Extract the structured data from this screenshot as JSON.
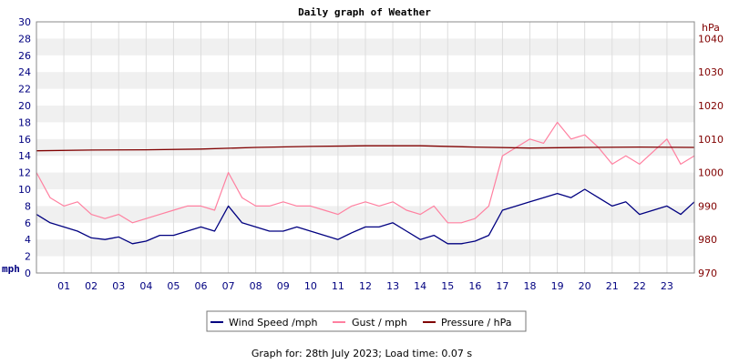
{
  "chart_data": {
    "type": "line",
    "title": "Daily graph of Weather",
    "left_axis": {
      "unit": "mph",
      "range": [
        0,
        30
      ],
      "ticks": [
        0,
        2,
        4,
        6,
        8,
        10,
        12,
        14,
        16,
        18,
        20,
        22,
        24,
        26,
        28,
        30
      ],
      "tick_labels": [
        "0",
        "2",
        "4",
        "6",
        "8",
        "10",
        "12",
        "14",
        "16",
        "18",
        "20",
        "22",
        "24",
        "26",
        "28",
        "30"
      ]
    },
    "right_axis": {
      "unit": "hPa",
      "range": [
        970,
        1045
      ],
      "ticks": [
        970,
        980,
        990,
        1000,
        1010,
        1020,
        1030,
        1040
      ],
      "tick_labels": [
        "970",
        "980",
        "990",
        "1000",
        "1010",
        "1020",
        "1030",
        "1040"
      ]
    },
    "x_axis": {
      "range": [
        0,
        24
      ],
      "ticks": [
        1,
        2,
        3,
        4,
        5,
        6,
        7,
        8,
        9,
        10,
        11,
        12,
        13,
        14,
        15,
        16,
        17,
        18,
        19,
        20,
        21,
        22,
        23
      ],
      "tick_labels": [
        "01",
        "02",
        "03",
        "04",
        "05",
        "06",
        "07",
        "08",
        "09",
        "10",
        "11",
        "12",
        "13",
        "14",
        "15",
        "16",
        "17",
        "18",
        "19",
        "20",
        "21",
        "22",
        "23"
      ]
    },
    "grid": true,
    "legend_position": "bottom",
    "series": [
      {
        "name": "Wind Speed /mph",
        "axis": "left",
        "color": "#000080",
        "x": [
          0,
          0.5,
          1,
          1.5,
          2,
          2.5,
          3,
          3.5,
          4,
          4.5,
          5,
          5.5,
          6,
          6.5,
          7,
          7.5,
          8,
          8.5,
          9,
          9.5,
          10,
          10.5,
          11,
          11.5,
          12,
          12.5,
          13,
          13.5,
          14,
          14.5,
          15,
          15.5,
          16,
          16.5,
          17,
          17.5,
          18,
          18.5,
          19,
          19.5,
          20,
          20.5,
          21,
          21.5,
          22,
          22.5,
          23,
          23.5,
          24
        ],
        "values": [
          7,
          6,
          5.5,
          5,
          4.2,
          4,
          4.3,
          3.5,
          3.8,
          4.5,
          4.5,
          5,
          5.5,
          5,
          8,
          6,
          5.5,
          5,
          5,
          5.5,
          5,
          4.5,
          4,
          4.8,
          5.5,
          5.5,
          6,
          5,
          4,
          4.5,
          3.5,
          3.5,
          3.8,
          4.5,
          7.5,
          8,
          8.5,
          9,
          9.5,
          9,
          10,
          9,
          8,
          8.5,
          7,
          7.5,
          8,
          7,
          8.5
        ]
      },
      {
        "name": "Gust / mph",
        "axis": "left",
        "color": "#ff80a0",
        "x": [
          0,
          0.5,
          1,
          1.5,
          2,
          2.5,
          3,
          3.5,
          4,
          4.5,
          5,
          5.5,
          6,
          6.5,
          7,
          7.5,
          8,
          8.5,
          9,
          9.5,
          10,
          10.5,
          11,
          11.5,
          12,
          12.5,
          13,
          13.5,
          14,
          14.5,
          15,
          15.5,
          16,
          16.5,
          17,
          17.5,
          18,
          18.5,
          19,
          19.5,
          20,
          20.5,
          21,
          21.5,
          22,
          22.5,
          23,
          23.5,
          24
        ],
        "values": [
          12,
          9,
          8,
          8.5,
          7,
          6.5,
          7,
          6,
          6.5,
          7,
          7.5,
          8,
          8,
          7.5,
          12,
          9,
          8,
          8,
          8.5,
          8,
          8,
          7.5,
          7,
          8,
          8.5,
          8,
          8.5,
          7.5,
          7,
          8,
          6,
          6,
          6.5,
          8,
          14,
          15,
          16,
          15.5,
          18,
          16,
          16.5,
          15,
          13,
          14,
          13,
          14.5,
          16,
          13,
          14
        ]
      },
      {
        "name": "Pressure / hPa",
        "axis": "right",
        "color": "#800000",
        "x": [
          0,
          2,
          4,
          6,
          8,
          10,
          12,
          14,
          16,
          18,
          20,
          22,
          24
        ],
        "values": [
          1006.5,
          1006.7,
          1006.8,
          1007.0,
          1007.5,
          1007.8,
          1008.0,
          1008.0,
          1007.6,
          1007.3,
          1007.5,
          1007.6,
          1007.5
        ]
      }
    ]
  },
  "footer": "Graph for: 28th July 2023; Load time: 0.07 s"
}
